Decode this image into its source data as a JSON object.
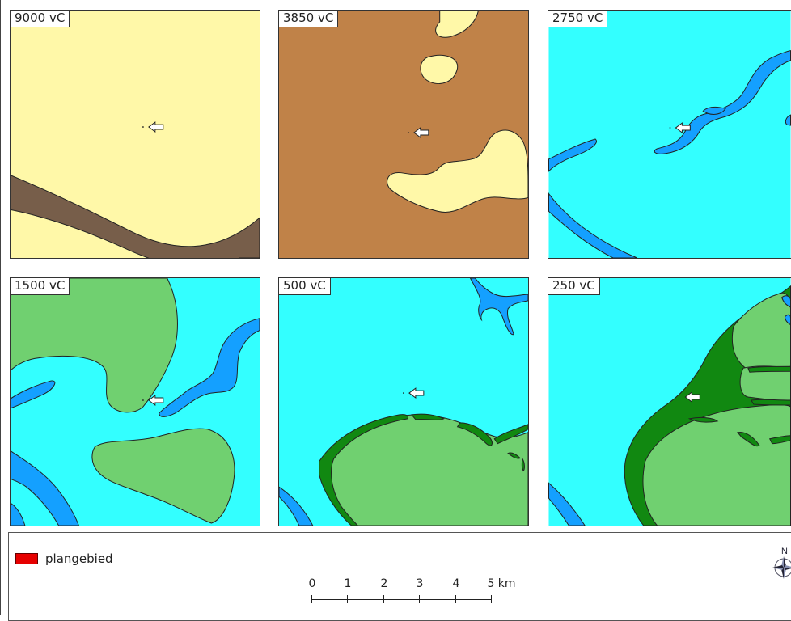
{
  "panels": [
    {
      "label": "9000 vC"
    },
    {
      "label": "3850 vC"
    },
    {
      "label": "2750 vC"
    },
    {
      "label": "1500 vC"
    },
    {
      "label": "500 vC"
    },
    {
      "label": "250 vC"
    }
  ],
  "legend": {
    "item_label": "plangebied",
    "item_color": "#e60000"
  },
  "scale": {
    "ticks": [
      "0",
      "1",
      "2",
      "3",
      "4",
      "5 km"
    ]
  },
  "north_arrow": {
    "letter": "N"
  },
  "colors": {
    "sand": "#fff8a8",
    "peat": "#c08248",
    "river_dark": "#775e4a",
    "sea": "#33ffff",
    "channel": "#14a0ff",
    "land": "#70d070",
    "salt_marsh": "#118811"
  },
  "icons": {
    "marker": "arrow-left-icon"
  }
}
